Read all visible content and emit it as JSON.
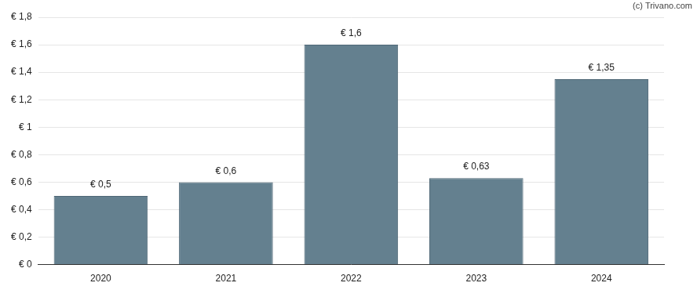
{
  "chart_data": {
    "type": "bar",
    "annotations": [
      "(c) Trivano.com"
    ],
    "categories": [
      "2020",
      "2021",
      "2022",
      "2023",
      "2024"
    ],
    "values": [
      0.5,
      0.6,
      1.6,
      0.63,
      1.35
    ],
    "value_labels": [
      "€ 0,5",
      "€ 0,6",
      "€ 1,6",
      "€ 0,63",
      "€ 1,35"
    ],
    "data_labels": true,
    "color": "#64808f",
    "ylim": [
      0,
      1.8
    ],
    "yticks": [
      {
        "value": 0,
        "label": "€ 0"
      },
      {
        "value": 0.2,
        "label": "€ 0,2"
      },
      {
        "value": 0.4,
        "label": "€ 0,4"
      },
      {
        "value": 0.6,
        "label": "€ 0,6"
      },
      {
        "value": 0.8,
        "label": "€ 0,8"
      },
      {
        "value": 1,
        "label": "€ 1"
      },
      {
        "value": 1.2,
        "label": "€ 1,2"
      },
      {
        "value": 1.4,
        "label": "€ 1,4"
      },
      {
        "value": 1.6,
        "label": "€ 1,6"
      },
      {
        "value": 1.8,
        "label": "€ 1,8"
      }
    ],
    "grid": true
  }
}
